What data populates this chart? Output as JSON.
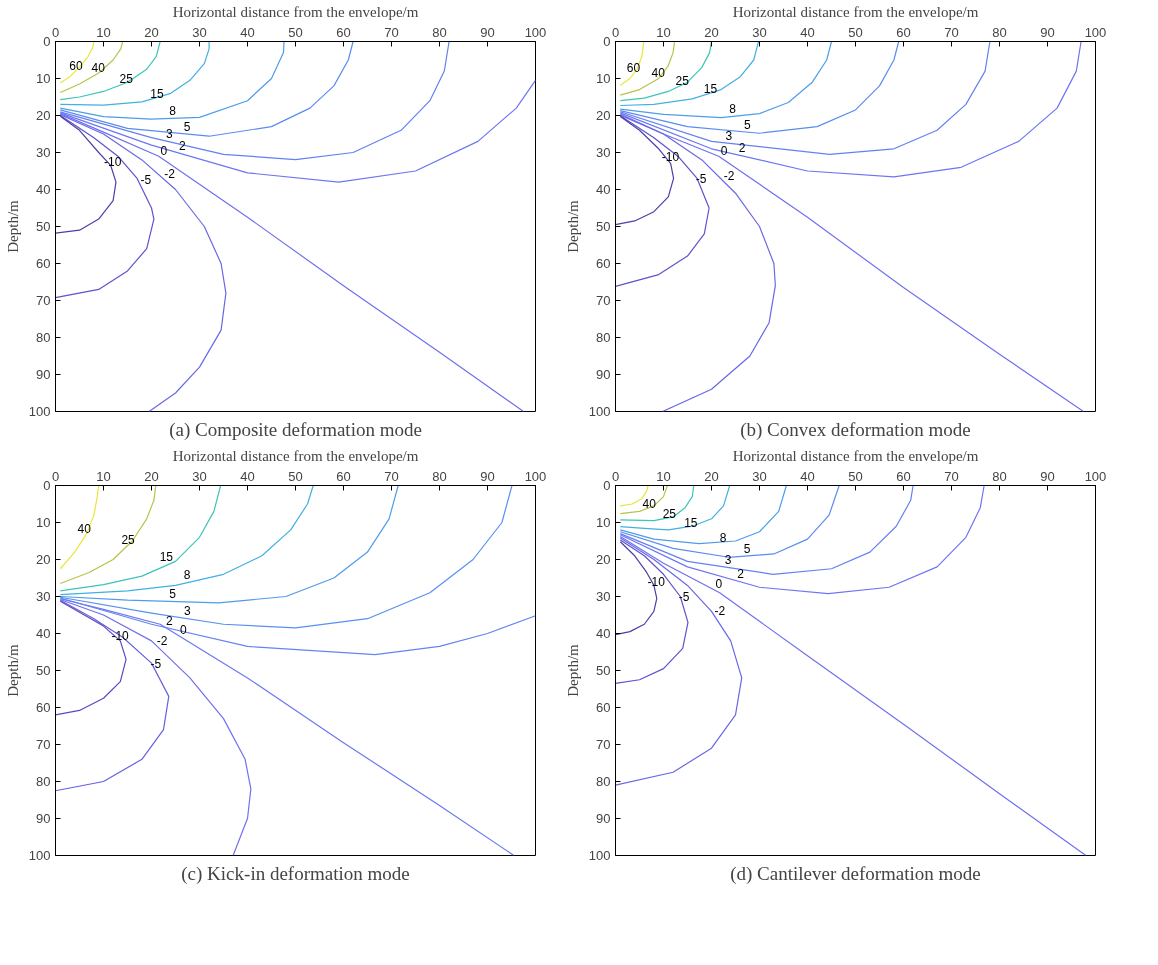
{
  "chart_data": [
    {
      "type": "line",
      "title": "(a) Composite deformation mode",
      "xlabel": "Horizontal distance from the envelope/m",
      "ylabel": "Depth/m",
      "xlim": [
        0,
        100
      ],
      "ylim": [
        100,
        0
      ],
      "xticks": [
        0,
        10,
        20,
        30,
        40,
        50,
        60,
        70,
        80,
        90,
        100
      ],
      "yticks": [
        0,
        10,
        20,
        30,
        40,
        50,
        60,
        70,
        80,
        90,
        100
      ],
      "grid": false,
      "series": [
        {
          "name": "60",
          "color": "#e8e63a",
          "x": [
            1,
            3,
            5,
            6.8,
            7.8,
            8
          ],
          "values": [
            11.2,
            9.5,
            7,
            4,
            1.5,
            0
          ]
        },
        {
          "name": "40",
          "color": "#b9c24a",
          "x": [
            1,
            5,
            9,
            12,
            13.6,
            14
          ],
          "values": [
            13.8,
            11.5,
            8.5,
            5,
            2,
            0
          ]
        },
        {
          "name": "25",
          "color": "#3cc4b8",
          "x": [
            1,
            5,
            10,
            15,
            19,
            21,
            21.8
          ],
          "values": [
            15.7,
            15,
            13.5,
            11,
            7.5,
            4,
            0
          ]
        },
        {
          "name": "15",
          "color": "#42b0e0",
          "x": [
            1,
            10,
            18,
            24,
            28,
            31,
            32,
            32
          ],
          "values": [
            17,
            17.2,
            16.3,
            14,
            10.5,
            6,
            2,
            0
          ]
        },
        {
          "name": "8",
          "color": "#4f9ce8",
          "x": [
            1,
            10,
            19.9,
            30,
            40,
            45,
            47.5,
            47.6
          ],
          "values": [
            18,
            20.3,
            21,
            20.5,
            16,
            10,
            3,
            0
          ]
        },
        {
          "name": "5",
          "color": "#5a8cf0",
          "x": [
            1,
            15,
            32,
            45,
            53,
            58,
            61,
            62
          ],
          "values": [
            18.5,
            23.5,
            25.6,
            23,
            18,
            12,
            5,
            0
          ]
        },
        {
          "name": "3",
          "color": "#6480f2",
          "x": [
            1,
            20,
            35,
            50,
            62,
            72,
            78,
            81,
            82
          ],
          "values": [
            19,
            26,
            30.5,
            31.9,
            30,
            24,
            16,
            8,
            0
          ]
        },
        {
          "name": "2",
          "color": "#6c76f2",
          "x": [
            1,
            20,
            40,
            59,
            75,
            88,
            96,
            100
          ],
          "values": [
            19.3,
            28,
            35.5,
            38,
            35,
            27,
            18,
            10.5
          ]
        },
        {
          "name": "0",
          "color": "#7070f0",
          "x": [
            1,
            10,
            21.5,
            40,
            60,
            80,
            97.5
          ],
          "values": [
            19.5,
            24.5,
            31,
            47.5,
            66,
            84,
            100
          ]
        },
        {
          "name": "-2",
          "color": "#6868e4",
          "x": [
            1,
            10,
            18,
            25,
            31,
            34.5,
            35.5,
            34.5,
            30,
            25,
            19.5
          ],
          "values": [
            19.8,
            25,
            32,
            40,
            50,
            60,
            68,
            78,
            88,
            95,
            100
          ]
        },
        {
          "name": "-5",
          "color": "#5c54cc",
          "x": [
            1,
            8,
            13,
            17,
            20,
            20.5,
            19,
            15,
            9,
            0
          ],
          "values": [
            20,
            26,
            31,
            37,
            45,
            48,
            56,
            62,
            67,
            69.2
          ]
        },
        {
          "name": "-10",
          "color": "#4e3ea6",
          "x": [
            1,
            5,
            9,
            11.5,
            12.6,
            12,
            9,
            5,
            0
          ],
          "values": [
            20.2,
            24,
            30,
            33.5,
            38,
            43,
            48,
            51,
            51.8
          ]
        }
      ]
    },
    {
      "type": "line",
      "title": "(b) Convex deformation mode",
      "xlabel": "Horizontal distance from the envelope/m",
      "ylabel": "Depth/m",
      "xlim": [
        0,
        100
      ],
      "ylim": [
        100,
        0
      ],
      "xticks": [
        0,
        10,
        20,
        30,
        40,
        50,
        60,
        70,
        80,
        90,
        100
      ],
      "yticks": [
        0,
        10,
        20,
        30,
        40,
        50,
        60,
        70,
        80,
        90,
        100
      ],
      "grid": false,
      "series": [
        {
          "name": "60",
          "color": "#e8e63a",
          "x": [
            1,
            3,
            4.5,
            5.5,
            5.9
          ],
          "values": [
            11.8,
            10,
            7.5,
            4,
            0
          ]
        },
        {
          "name": "40",
          "color": "#b9c24a",
          "x": [
            1,
            5,
            9,
            11,
            12,
            12.3
          ],
          "values": [
            14.5,
            13,
            10,
            6.5,
            3,
            0
          ]
        },
        {
          "name": "25",
          "color": "#3cc4b8",
          "x": [
            1,
            6,
            11,
            15,
            18,
            19.6,
            20
          ],
          "values": [
            16,
            15.3,
            13.5,
            11,
            7,
            3,
            0
          ]
        },
        {
          "name": "15",
          "color": "#42b0e0",
          "x": [
            1,
            8,
            16,
            22,
            26,
            28.8,
            29.8
          ],
          "values": [
            17.3,
            17,
            15.5,
            13,
            9.5,
            5,
            0
          ]
        },
        {
          "name": "8",
          "color": "#4f9ce8",
          "x": [
            1,
            10,
            22,
            30,
            36,
            41,
            44,
            45
          ],
          "values": [
            18.3,
            19.7,
            20.6,
            19.5,
            16.5,
            11,
            5,
            0
          ]
        },
        {
          "name": "5",
          "color": "#5a8cf0",
          "x": [
            1,
            15,
            30,
            42,
            50,
            55,
            58,
            59
          ],
          "values": [
            18.7,
            23,
            24.8,
            23,
            18.5,
            12,
            5,
            0
          ]
        },
        {
          "name": "3",
          "color": "#6480f2",
          "x": [
            1,
            20,
            44.6,
            58,
            67,
            73,
            77,
            78
          ],
          "values": [
            19,
            27,
            30.5,
            29,
            24,
            17,
            8,
            0
          ]
        },
        {
          "name": "2",
          "color": "#6c76f2",
          "x": [
            1,
            20,
            40,
            58,
            72,
            84,
            92,
            96,
            97
          ],
          "values": [
            19.3,
            29,
            35,
            36.6,
            34,
            27,
            18,
            8,
            0
          ]
        },
        {
          "name": "0",
          "color": "#7070f0",
          "x": [
            1,
            10,
            21.5,
            40,
            60,
            80,
            97.5
          ],
          "values": [
            19.6,
            25,
            31,
            47.5,
            66.5,
            84.5,
            100
          ]
        },
        {
          "name": "-2",
          "color": "#6868e4",
          "x": [
            1,
            10,
            18,
            25,
            30,
            33,
            33.3,
            32,
            28,
            20,
            9.8
          ],
          "values": [
            19.9,
            25,
            32,
            41,
            50,
            60,
            66,
            76,
            85,
            94,
            100
          ]
        },
        {
          "name": "-5",
          "color": "#5c54cc",
          "x": [
            1,
            8,
            13,
            17,
            19.5,
            18.5,
            15,
            9,
            0
          ],
          "values": [
            20.1,
            26,
            31,
            37,
            45,
            52,
            58,
            63,
            66.2
          ]
        },
        {
          "name": "-10",
          "color": "#4e3ea6",
          "x": [
            1,
            5,
            9,
            11.5,
            12.1,
            11,
            8,
            4,
            0
          ],
          "values": [
            20.3,
            24,
            29,
            33,
            37,
            42,
            46,
            48.5,
            49.5
          ]
        }
      ]
    },
    {
      "type": "line",
      "title": "(c) Kick-in deformation mode",
      "xlabel": "Horizontal distance from the envelope/m",
      "ylabel": "Depth/m",
      "xlim": [
        0,
        100
      ],
      "ylim": [
        100,
        0
      ],
      "xticks": [
        0,
        10,
        20,
        30,
        40,
        50,
        60,
        70,
        80,
        90,
        100
      ],
      "yticks": [
        0,
        10,
        20,
        30,
        40,
        50,
        60,
        70,
        80,
        90,
        100
      ],
      "grid": false,
      "series": [
        {
          "name": "40",
          "color": "#e8e63a",
          "x": [
            1,
            4,
            6.5,
            8,
            8.7,
            9
          ],
          "values": [
            22.5,
            18,
            13,
            8,
            3,
            0
          ]
        },
        {
          "name": "25",
          "color": "#b9c24a",
          "x": [
            1,
            7,
            12,
            16,
            19,
            20.5,
            20.9
          ],
          "values": [
            26.5,
            23.5,
            20,
            15,
            9,
            4,
            0
          ]
        },
        {
          "name": "15",
          "color": "#3cc4b8",
          "x": [
            1,
            10,
            18,
            25,
            30,
            33,
            34.4
          ],
          "values": [
            28.5,
            26.8,
            24.5,
            20.5,
            14,
            7,
            0
          ]
        },
        {
          "name": "8",
          "color": "#42b0e0",
          "x": [
            1,
            15,
            25,
            35,
            43,
            49,
            52.5,
            53.7
          ],
          "values": [
            29.5,
            28.5,
            27,
            24,
            19,
            12,
            5,
            0
          ]
        },
        {
          "name": "5",
          "color": "#4f9ce8",
          "x": [
            1,
            15,
            34,
            48,
            58,
            65,
            69.5,
            71.4
          ],
          "values": [
            30,
            31,
            31.7,
            30,
            25,
            18,
            9,
            0
          ]
        },
        {
          "name": "3",
          "color": "#5a90f0",
          "x": [
            1,
            20,
            35,
            50,
            65,
            78,
            87,
            93,
            95.1
          ],
          "values": [
            30.2,
            34.5,
            37.5,
            38.5,
            36,
            29,
            20,
            10,
            0
          ]
        },
        {
          "name": "2",
          "color": "#6484f2",
          "x": [
            1,
            20,
            40,
            66.6,
            80,
            90,
            100
          ],
          "values": [
            30.4,
            37.5,
            43.5,
            45.7,
            43.5,
            40,
            35.2
          ]
        },
        {
          "name": "0",
          "color": "#6c78f2",
          "x": [
            1,
            10,
            21.8,
            40,
            60,
            80,
            95.5
          ],
          "values": [
            30.6,
            33.5,
            37.5,
            52,
            69.5,
            86.5,
            100
          ]
        },
        {
          "name": "-2",
          "color": "#7070f0",
          "x": [
            1,
            10,
            20,
            28,
            35,
            39.5,
            40.7,
            40,
            37
          ],
          "values": [
            30.8,
            35,
            42,
            52,
            63,
            74,
            82,
            90,
            100
          ]
        },
        {
          "name": "-5",
          "color": "#6660e0",
          "x": [
            1,
            8,
            14,
            20,
            23.6,
            22.5,
            18,
            10,
            0
          ],
          "values": [
            31,
            36,
            41,
            48,
            57,
            66,
            74,
            80,
            82.5
          ]
        },
        {
          "name": "-10",
          "color": "#5a48c0",
          "x": [
            1,
            6,
            10,
            13.5,
            14.7,
            13.5,
            10,
            5,
            0
          ],
          "values": [
            31.3,
            35,
            38,
            42,
            47,
            53,
            57.5,
            60.8,
            62
          ]
        }
      ]
    },
    {
      "type": "line",
      "title": "(d) Cantilever deformation mode",
      "xlabel": "Horizontal distance from the envelope/m",
      "ylabel": "Depth/m",
      "xlim": [
        0,
        100
      ],
      "ylim": [
        100,
        0
      ],
      "xticks": [
        0,
        10,
        20,
        30,
        40,
        50,
        60,
        70,
        80,
        90,
        100
      ],
      "yticks": [
        0,
        10,
        20,
        30,
        40,
        50,
        60,
        70,
        80,
        90,
        100
      ],
      "grid": false,
      "series": [
        {
          "color": "#e8e63a",
          "x": [
            1,
            3.5,
            5.5,
            6.5,
            6.8
          ],
          "values": [
            5.5,
            5,
            3.5,
            1.5,
            0
          ]
        },
        {
          "name": "40",
          "color": "#b9c24a",
          "x": [
            1,
            5,
            8,
            10,
            10.8
          ],
          "values": [
            7.6,
            7,
            5.5,
            3,
            0
          ]
        },
        {
          "name": "25",
          "color": "#3cc4b8",
          "x": [
            1,
            8,
            12,
            14.5,
            16,
            16.3
          ],
          "values": [
            9.3,
            9.5,
            8.5,
            6,
            3,
            0
          ]
        },
        {
          "name": "15",
          "color": "#42b0e0",
          "x": [
            1,
            6,
            11,
            16,
            20,
            22.5,
            23.8
          ],
          "values": [
            11.1,
            11.6,
            12,
            11,
            9,
            5.5,
            0
          ]
        },
        {
          "name": "8",
          "color": "#4f9ce8",
          "x": [
            1,
            8,
            17.4,
            25,
            30,
            34,
            35.6
          ],
          "values": [
            12,
            14.5,
            15.7,
            15,
            12.5,
            7,
            0
          ]
        },
        {
          "name": "5",
          "color": "#5a8cf0",
          "x": [
            1,
            12,
            23.6,
            33,
            40,
            44.5,
            46.6
          ],
          "values": [
            12.5,
            17,
            19.4,
            18.5,
            14.5,
            8,
            0
          ]
        },
        {
          "name": "3",
          "color": "#6480f2",
          "x": [
            1,
            15,
            32.8,
            45,
            53,
            58.5,
            61.5,
            62
          ],
          "values": [
            13,
            20.5,
            24,
            22.5,
            18,
            11,
            4,
            0
          ]
        },
        {
          "name": "2",
          "color": "#6c76f2",
          "x": [
            1,
            15,
            30,
            44.3,
            57,
            67,
            73,
            76,
            76.8
          ],
          "values": [
            13.3,
            22,
            27.5,
            29.2,
            27.5,
            22,
            14,
            6,
            0
          ]
        },
        {
          "name": "0",
          "color": "#7070f0",
          "x": [
            1,
            10,
            21.7,
            40,
            60,
            80,
            98
          ],
          "values": [
            13.8,
            21,
            29,
            46,
            64.5,
            83.3,
            100
          ]
        },
        {
          "name": "-2",
          "color": "#6868e4",
          "x": [
            1,
            8,
            15,
            20,
            24,
            26.3,
            25,
            20,
            12,
            0
          ],
          "values": [
            14.2,
            20,
            27,
            34,
            42,
            52,
            62,
            71,
            77.5,
            81
          ]
        },
        {
          "name": "-5",
          "color": "#5c54cc",
          "x": [
            1,
            6,
            10,
            13.5,
            15.1,
            14,
            10,
            5,
            0
          ],
          "values": [
            14.7,
            19,
            24,
            30,
            37,
            44,
            49.5,
            52.5,
            53.5
          ]
        },
        {
          "name": "-10",
          "color": "#4e3ea6",
          "x": [
            1,
            4,
            6.5,
            8,
            8.6,
            8,
            6,
            3,
            0
          ],
          "values": [
            15.2,
            19,
            23.5,
            27,
            30.5,
            34,
            37.5,
            39.5,
            40.3
          ]
        }
      ]
    }
  ]
}
